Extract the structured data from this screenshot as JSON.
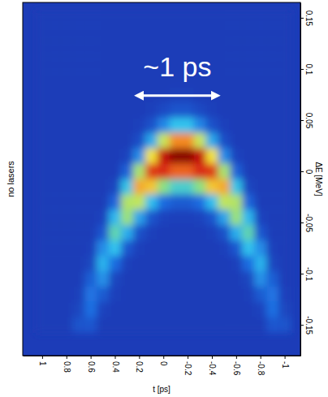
{
  "chart_data": {
    "type": "heatmap",
    "title": "no lasers",
    "x_label": "t [ps]",
    "y_label": "ΔE [MeV]",
    "x": [
      1,
      0.9,
      0.8,
      0.7,
      0.6,
      0.5,
      0.4,
      0.3,
      0.2,
      0.1,
      0,
      -0.1,
      -0.2,
      -0.3,
      -0.4,
      -0.5,
      -0.6,
      -0.7,
      -0.8,
      -0.9,
      -1
    ],
    "y": [
      0.15,
      0.135,
      0.12,
      0.105,
      0.09,
      0.075,
      0.06,
      0.045,
      0.03,
      0.015,
      0,
      -0.015,
      -0.03,
      -0.045,
      -0.06,
      -0.075,
      -0.09,
      -0.105,
      -0.12,
      -0.135,
      -0.15
    ],
    "z": [
      [
        0,
        0,
        0,
        0,
        0,
        0,
        0,
        0,
        0,
        0,
        0,
        0,
        0,
        0,
        0,
        0,
        0,
        0,
        0,
        0,
        0
      ],
      [
        0,
        0,
        0,
        0,
        0,
        0,
        0,
        0,
        0,
        0,
        0,
        0,
        0,
        0,
        0,
        0,
        0,
        0,
        0,
        0,
        0
      ],
      [
        0,
        0,
        0,
        0,
        0,
        0,
        0,
        0,
        0,
        0,
        0,
        0,
        0,
        0,
        0,
        0,
        0,
        0,
        0,
        0,
        0
      ],
      [
        0,
        0,
        0,
        0,
        0,
        0,
        0,
        0,
        0,
        0,
        0,
        0,
        0,
        0,
        0,
        0,
        0,
        0,
        0,
        0,
        0
      ],
      [
        0,
        0,
        0,
        0,
        0,
        0,
        0,
        0,
        0,
        0,
        0,
        0,
        0,
        0,
        0,
        0,
        0,
        0,
        0,
        0,
        0
      ],
      [
        0,
        0,
        0,
        0,
        0,
        0,
        0,
        0,
        0,
        0,
        0,
        0.01,
        0.01,
        0,
        0,
        0,
        0,
        0,
        0,
        0,
        0
      ],
      [
        0,
        0,
        0,
        0,
        0,
        0,
        0,
        0,
        0,
        0.01,
        0.04,
        0.07,
        0.07,
        0.04,
        0.01,
        0,
        0,
        0,
        0,
        0,
        0
      ],
      [
        0,
        0,
        0,
        0,
        0,
        0,
        0,
        0,
        0.01,
        0.06,
        0.19,
        0.3,
        0.3,
        0.19,
        0.06,
        0.01,
        0,
        0,
        0,
        0,
        0
      ],
      [
        0,
        0,
        0,
        0,
        0,
        0,
        0,
        0,
        0.05,
        0.25,
        0.54,
        0.72,
        0.72,
        0.54,
        0.25,
        0.05,
        0,
        0,
        0,
        0,
        0
      ],
      [
        0,
        0,
        0,
        0,
        0,
        0,
        0,
        0.02,
        0.2,
        0.6,
        0.89,
        0.99,
        0.99,
        0.89,
        0.6,
        0.2,
        0.02,
        0,
        0,
        0,
        0
      ],
      [
        0,
        0,
        0,
        0,
        0,
        0,
        0,
        0.11,
        0.5,
        0.82,
        0.84,
        0.77,
        0.77,
        0.84,
        0.82,
        0.5,
        0.11,
        0,
        0,
        0,
        0
      ],
      [
        0,
        0,
        0,
        0,
        0,
        0,
        0.03,
        0.31,
        0.68,
        0.64,
        0.46,
        0.35,
        0.35,
        0.46,
        0.64,
        0.68,
        0.31,
        0.03,
        0,
        0,
        0
      ],
      [
        0,
        0,
        0,
        0,
        0,
        0,
        0.12,
        0.51,
        0.53,
        0.29,
        0.14,
        0.09,
        0.09,
        0.14,
        0.29,
        0.53,
        0.51,
        0.12,
        0,
        0,
        0
      ],
      [
        0,
        0,
        0,
        0,
        0,
        0.02,
        0.28,
        0.48,
        0.24,
        0.07,
        0.02,
        0.01,
        0.01,
        0.02,
        0.07,
        0.24,
        0.48,
        0.28,
        0.02,
        0,
        0
      ],
      [
        0,
        0,
        0,
        0,
        0,
        0.08,
        0.39,
        0.26,
        0.06,
        0.01,
        0,
        0,
        0,
        0,
        0.01,
        0.06,
        0.26,
        0.39,
        0.08,
        0,
        0
      ],
      [
        0,
        0,
        0,
        0,
        0.01,
        0.2,
        0.3,
        0.08,
        0.01,
        0,
        0,
        0,
        0,
        0,
        0,
        0.01,
        0.08,
        0.3,
        0.2,
        0.01,
        0
      ],
      [
        0,
        0,
        0,
        0,
        0.03,
        0.27,
        0.14,
        0.01,
        0,
        0,
        0,
        0,
        0,
        0,
        0,
        0,
        0.01,
        0.14,
        0.27,
        0.03,
        0
      ],
      [
        0,
        0,
        0,
        0,
        0.1,
        0.21,
        0.03,
        0,
        0,
        0,
        0,
        0,
        0,
        0,
        0,
        0,
        0,
        0.03,
        0.21,
        0.1,
        0
      ],
      [
        0,
        0,
        0,
        0.01,
        0.16,
        0.09,
        0.01,
        0,
        0,
        0,
        0,
        0,
        0,
        0,
        0,
        0,
        0,
        0.01,
        0.09,
        0.16,
        0.01
      ],
      [
        0,
        0,
        0,
        0.03,
        0.15,
        0.02,
        0,
        0,
        0,
        0,
        0,
        0,
        0,
        0,
        0,
        0,
        0,
        0,
        0.02,
        0.15,
        0.03
      ],
      [
        0,
        0,
        0,
        0.07,
        0.08,
        0,
        0,
        0,
        0,
        0,
        0,
        0,
        0,
        0,
        0,
        0,
        0,
        0,
        0,
        0.08,
        0.07
      ]
    ],
    "xlim": [
      1.16,
      -1.13
    ],
    "ylim": [
      -0.18,
      0.165
    ],
    "xticks": [
      1,
      0.8,
      0.6,
      0.4,
      0.2,
      0,
      -0.2,
      -0.4,
      -0.6,
      -0.8,
      -1
    ],
    "yticks": [
      0.15,
      0.1,
      0.05,
      0,
      -0.05,
      -0.1,
      -0.15
    ],
    "annotation": {
      "text": "~1 ps",
      "x": [
        0.25,
        -0.48
      ],
      "y": 0.074
    }
  }
}
